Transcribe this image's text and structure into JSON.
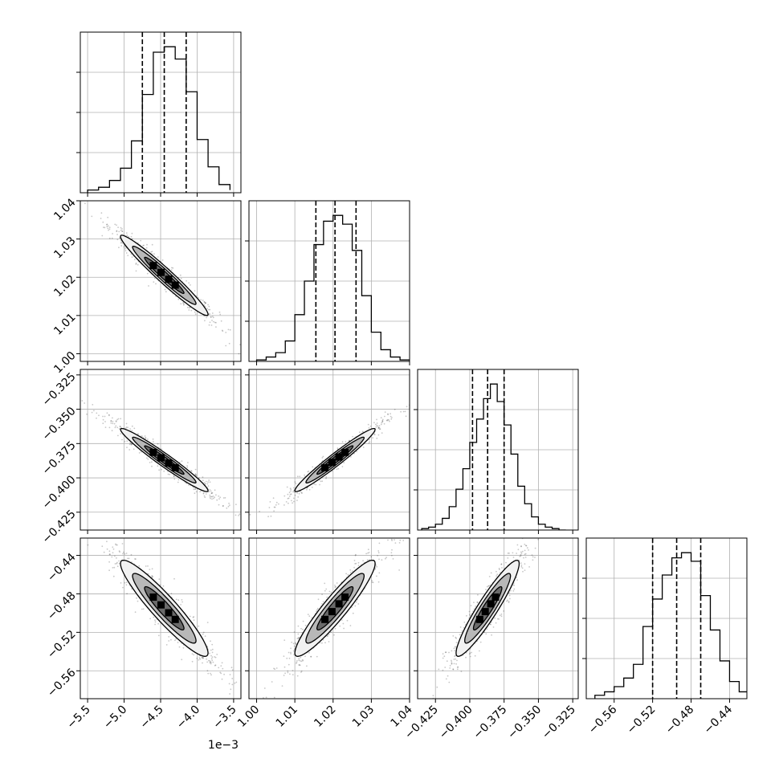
{
  "chart_data": {
    "type": "corner",
    "title": "",
    "parameters": [
      {
        "label": "",
        "range": [
          -5.6,
          -3.4
        ],
        "ticks": [
          -5.5,
          -5.0,
          -4.5,
          -4.0,
          -3.5
        ],
        "tick_labels": [
          "−5.5",
          "−5.0",
          "−4.5",
          "−4.0",
          "−3.5"
        ],
        "offset_label": "1e−3",
        "quantiles": [
          -4.75,
          -4.45,
          -4.15
        ],
        "hist_edges": [
          -5.5,
          -5.35,
          -5.2,
          -5.05,
          -4.9,
          -4.75,
          -4.6,
          -4.45,
          -4.3,
          -4.15,
          -4.0,
          -3.85,
          -3.7,
          -3.55
        ],
        "hist_counts": [
          2,
          4,
          9,
          18,
          38,
          72,
          103,
          107,
          98,
          74,
          39,
          19,
          6,
          2
        ]
      },
      {
        "label": "",
        "range": [
          0.998,
          1.04
        ],
        "ticks": [
          1.0,
          1.01,
          1.02,
          1.03,
          1.04
        ],
        "tick_labels": [
          "1.00",
          "1.01",
          "1.02",
          "1.03",
          "1.04"
        ],
        "quantiles": [
          1.0155,
          1.0205,
          1.026
        ],
        "hist_edges": [
          1.0,
          1.0025,
          1.005,
          1.0075,
          1.01,
          1.0125,
          1.015,
          1.0175,
          1.02,
          1.0225,
          1.025,
          1.0275,
          1.03,
          1.0325,
          1.035,
          1.0375,
          1.04
        ],
        "hist_counts": [
          1,
          3,
          6,
          14,
          32,
          55,
          80,
          96,
          100,
          94,
          76,
          45,
          20,
          8,
          3,
          1
        ]
      },
      {
        "label": "",
        "range": [
          -0.438,
          -0.321
        ],
        "ticks": [
          -0.425,
          -0.4,
          -0.375,
          -0.35,
          -0.325
        ],
        "tick_labels": [
          "−0.425",
          "−0.400",
          "−0.375",
          "−0.350",
          "−0.325"
        ],
        "quantiles": [
          -0.398,
          -0.387,
          -0.375
        ],
        "hist_edges": [
          -0.435,
          -0.43,
          -0.425,
          -0.42,
          -0.415,
          -0.41,
          -0.405,
          -0.4,
          -0.395,
          -0.39,
          -0.385,
          -0.38,
          -0.375,
          -0.37,
          -0.365,
          -0.36,
          -0.355,
          -0.35,
          -0.345,
          -0.34,
          -0.335,
          -0.33
        ],
        "hist_counts": [
          1,
          2,
          4,
          8,
          16,
          28,
          42,
          60,
          76,
          90,
          100,
          88,
          72,
          52,
          30,
          18,
          9,
          4,
          2,
          1,
          0
        ]
      },
      {
        "label": "",
        "range": [
          -0.589,
          -0.422
        ],
        "ticks": [
          -0.56,
          -0.52,
          -0.48,
          -0.44
        ],
        "tick_labels": [
          "−0.56",
          "−0.52",
          "−0.48",
          "−0.44"
        ],
        "quantiles": [
          -0.52,
          -0.495,
          -0.47
        ],
        "hist_edges": [
          -0.58,
          -0.57,
          -0.56,
          -0.55,
          -0.54,
          -0.53,
          -0.52,
          -0.51,
          -0.5,
          -0.49,
          -0.48,
          -0.47,
          -0.46,
          -0.45,
          -0.44,
          -0.43,
          -0.42
        ],
        "hist_counts": [
          2,
          4,
          7,
          12,
          20,
          42,
          58,
          72,
          82,
          85,
          80,
          60,
          40,
          22,
          10,
          4
        ]
      }
    ],
    "grid": true,
    "correlations": {
      "1-0": -0.97,
      "2-0": -0.97,
      "2-1": 0.97,
      "3-0": -0.93,
      "3-1": 0.93,
      "3-2": 0.93
    },
    "colors": {
      "line": "#000000",
      "grid": "#b0b0b0",
      "points": "#000000"
    }
  }
}
